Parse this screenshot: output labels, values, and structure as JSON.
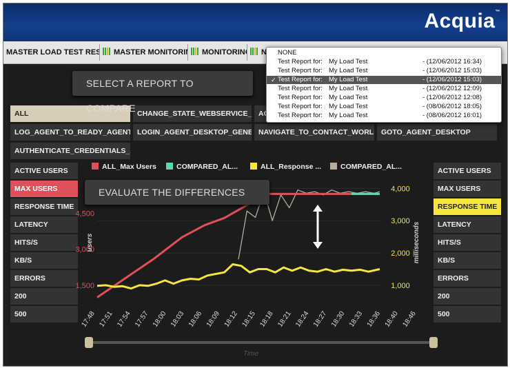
{
  "logo": "Acquia",
  "logo_tm": "™",
  "tabs": [
    {
      "label": "MASTER LOAD TEST RESULTS"
    },
    {
      "label": "MASTER MONITORING"
    },
    {
      "label": "MONITORING"
    },
    {
      "label": "N"
    }
  ],
  "dropdown": {
    "items": [
      {
        "prefix": "NONE",
        "name": "",
        "date": ""
      },
      {
        "prefix": "Test Report for:",
        "name": "My Load Test",
        "date": "- (12/06/2012 16:34)"
      },
      {
        "prefix": "Test Report for:",
        "name": "My Load Test",
        "date": "- (12/06/2012 15:03)"
      },
      {
        "prefix": "Test Report for:",
        "name": "My Load Test",
        "date": "- (12/06/2012 15:03)"
      },
      {
        "prefix": "Test Report for:",
        "name": "My Load Test",
        "date": "- (12/06/2012 12:09)"
      },
      {
        "prefix": "Test Report for:",
        "name": "My Load Test",
        "date": "- (12/06/2012 12:08)"
      },
      {
        "prefix": "Test Report for:",
        "name": "My Load Test",
        "date": "- (08/06/2012 18:05)"
      },
      {
        "prefix": "Test Report for:",
        "name": "My Load Test",
        "date": "- (08/06/2012 16:01)"
      }
    ],
    "selected_index": 3,
    "check_glyph": "✓"
  },
  "callouts": {
    "select_report": "SELECT A REPORT TO COMPARE",
    "evaluate": "EVALUATE THE DIFFERENCES"
  },
  "filters": {
    "row1": [
      "ALL",
      "CHANGE_STATE_WEBSERVICE_AS...",
      "AG"
    ],
    "row2": [
      "LOG_AGENT_TO_READY_AGENTDE...",
      "LOGIN_AGENT_DESKTOP_GENERA...",
      "NAVIGATE_TO_CONTACT_WORLD",
      "GOTO_AGENT_DESKTOP"
    ],
    "row3": [
      "AUTHENTICATE_CREDENTIALS_AU..."
    ]
  },
  "left_metrics": [
    "ACTIVE USERS",
    "MAX USERS",
    "RESPONSE TIME",
    "LATENCY",
    "HITS/S",
    "KB/S",
    "ERRORS",
    "200",
    "500"
  ],
  "right_metrics": [
    "ACTIVE USERS",
    "MAX USERS",
    "RESPONSE TIME",
    "LATENCY",
    "HITS/S",
    "KB/S",
    "ERRORS",
    "200",
    "500"
  ],
  "colors": {
    "max_users": "#e0505a",
    "compared_max": "#5dd6b5",
    "response": "#f6e63c",
    "compared_response": "#b8ad9c"
  },
  "chart_data": {
    "type": "line",
    "legend": [
      {
        "name": "ALL_Max Users",
        "color": "#e0505a"
      },
      {
        "name": "COMPARED_AL...",
        "color": "#5dd6b5"
      },
      {
        "name": "ALL_Response ...",
        "color": "#f6e63c"
      },
      {
        "name": "COMPARED_AL...",
        "color": "#b8ad9c"
      }
    ],
    "x_ticks": [
      "17:48",
      "17:51",
      "17:54",
      "17:57",
      "18:00",
      "18:03",
      "18:06",
      "18:09",
      "18:12",
      "18:15",
      "18:18",
      "18:21",
      "18:24",
      "18:27",
      "18:30",
      "18:33",
      "18:36",
      "18:40",
      "18:46"
    ],
    "xlabel": "Time",
    "ylabel_left": "users",
    "ylabel_right": "milliseconds",
    "y_left_ticks": [
      "1,500",
      "3,000",
      "4,500"
    ],
    "y_left_values": [
      1500,
      3000,
      4500
    ],
    "y_left_range": [
      700,
      6000
    ],
    "y_right_ticks": [
      "1,000",
      "2,000",
      "3,000",
      "4,000"
    ],
    "y_right_values": [
      1000,
      2000,
      3000,
      4000
    ],
    "y_right_range": [
      400,
      4350
    ],
    "series": [
      {
        "name": "ALL_Max Users",
        "axis": "left",
        "x": [
          0,
          0.1,
          0.2,
          0.3,
          0.38,
          0.45,
          0.6,
          0.9,
          1
        ],
        "y": [
          1000,
          1800,
          2600,
          3500,
          4000,
          4300,
          5300,
          5300,
          5300
        ]
      },
      {
        "name": "COMPARED_AL...",
        "axis": "left",
        "x": [
          0.9,
          1
        ],
        "y": [
          5300,
          5300
        ]
      },
      {
        "name": "ALL_Response ...",
        "axis": "right",
        "x": [
          0,
          0.03,
          0.06,
          0.09,
          0.12,
          0.15,
          0.18,
          0.21,
          0.24,
          0.27,
          0.3,
          0.33,
          0.36,
          0.39,
          0.42,
          0.45,
          0.48,
          0.51,
          0.54,
          0.57,
          0.6,
          0.63,
          0.66,
          0.69,
          0.72,
          0.75,
          0.78,
          0.81,
          0.84,
          0.87,
          0.9,
          0.93,
          0.96,
          1
        ],
        "y": [
          980,
          1000,
          950,
          970,
          900,
          1000,
          980,
          1050,
          1150,
          1050,
          1150,
          1200,
          1180,
          1300,
          1350,
          1400,
          1650,
          1600,
          1400,
          1500,
          1500,
          1400,
          1550,
          1450,
          1550,
          1450,
          1420,
          1500,
          1420,
          1480,
          1450,
          1480,
          1420,
          1500
        ]
      },
      {
        "name": "COMPARED_AL...",
        "axis": "right",
        "x": [
          0.5,
          0.53,
          0.56,
          0.59,
          0.62,
          0.65,
          0.68,
          0.71,
          0.74,
          0.77,
          0.8,
          0.83,
          0.86,
          0.89,
          0.92,
          0.95,
          0.98,
          1
        ],
        "y": [
          1800,
          3300,
          3100,
          3900,
          3000,
          3800,
          3400,
          3950,
          3850,
          3900,
          3800,
          3950,
          3850,
          3900,
          3850,
          3900,
          3850,
          3900
        ]
      }
    ]
  },
  "slider": {
    "time_label": "Time",
    "start": 0,
    "end": 1
  }
}
